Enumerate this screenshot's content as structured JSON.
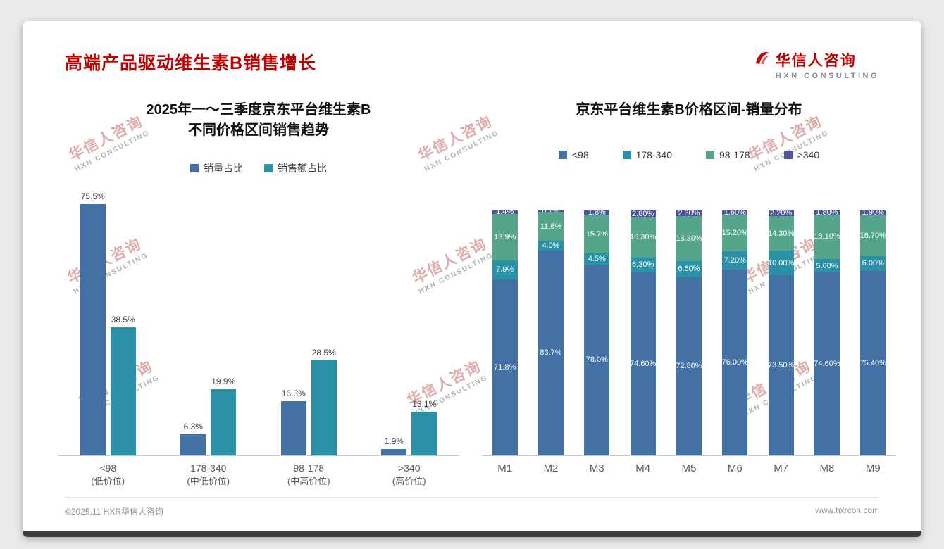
{
  "slide": {
    "title": "高端产品驱动维生素B销售增长",
    "logo_cn": "华信人咨询",
    "logo_en": "HXN CONSULTING",
    "watermark_cn": "华信人咨询",
    "watermark_en": "HXN CONSULTING",
    "footer_left": "©2025.11 HXR华信人咨询",
    "footer_right": "www.hxrcon.com"
  },
  "colors": {
    "title_red": "#c00000",
    "blue": "#4371a6",
    "teal": "#2a91a6",
    "green": "#54a58b",
    "navy": "#4a569e",
    "bottom_bar": "#3d3d3d"
  },
  "chart_data": [
    {
      "type": "bar",
      "title_lines": [
        "2025年一～三季度京东平台维生素B",
        "不同价格区间销售趋势"
      ],
      "categories": [
        "<98",
        "178-340",
        "98-178",
        ">340"
      ],
      "category_sublabels": [
        "(低价位)",
        "(中低价位)",
        "(中高价位)",
        "(高价位)"
      ],
      "series": [
        {
          "name": "销量占比",
          "color": "#4371a6",
          "values": [
            75.5,
            6.3,
            16.3,
            1.9
          ],
          "labels": [
            "75.5%",
            "6.3%",
            "16.3%",
            "1.9%"
          ]
        },
        {
          "name": "销售额占比",
          "color": "#2a91a6",
          "values": [
            38.5,
            19.9,
            28.5,
            13.1
          ],
          "labels": [
            "38.5%",
            "19.9%",
            "28.5%",
            "13.1%"
          ]
        }
      ],
      "ylim": [
        0,
        80
      ],
      "grid": false,
      "legend_position": "top",
      "value_suffix": "%"
    },
    {
      "type": "stacked-bar",
      "title": "京东平台维生素B价格区间-销量分布",
      "categories": [
        "M1",
        "M2",
        "M3",
        "M4",
        "M5",
        "M6",
        "M7",
        "M8",
        "M9"
      ],
      "series": [
        {
          "name": "<98",
          "color": "#4371a6",
          "values": [
            71.8,
            83.7,
            78.0,
            74.6,
            72.8,
            76.0,
            73.5,
            74.6,
            75.4
          ],
          "labels": [
            "71.8%",
            "83.7%",
            "78.0%",
            "74.60%",
            "72.80%",
            "76.00%",
            "73.50%",
            "74.60%",
            "75.40%"
          ]
        },
        {
          "name": "178-340",
          "color": "#2a91a6",
          "values": [
            7.9,
            4.0,
            4.5,
            6.3,
            6.6,
            7.2,
            10.0,
            5.6,
            6.0
          ],
          "labels": [
            "7.9%",
            "4.0%",
            "4.5%",
            "6.30%",
            "6.60%",
            "7.20%",
            "10.00%",
            "5.60%",
            "6.00%"
          ]
        },
        {
          "name": "98-178",
          "color": "#54a58b",
          "values": [
            18.9,
            11.6,
            15.7,
            16.3,
            18.3,
            15.2,
            14.3,
            18.1,
            16.7
          ],
          "labels": [
            "18.9%",
            "11.6%",
            "15.7%",
            "16.30%",
            "18.30%",
            "15.20%",
            "14.30%",
            "18.10%",
            "16.70%"
          ]
        },
        {
          "name": ">340",
          "color": "#4a569e",
          "values": [
            1.4,
            0.7,
            1.8,
            2.8,
            2.3,
            1.6,
            2.2,
            1.8,
            1.9
          ],
          "labels": [
            "1.4%",
            "0.7%",
            "1.8%",
            "2.80%",
            "2.30%",
            "1.60%",
            "2.20%",
            "1.80%",
            "1.90%"
          ]
        }
      ],
      "ylim": [
        0,
        100
      ],
      "grid": false,
      "legend_position": "top",
      "value_suffix": "%"
    }
  ]
}
